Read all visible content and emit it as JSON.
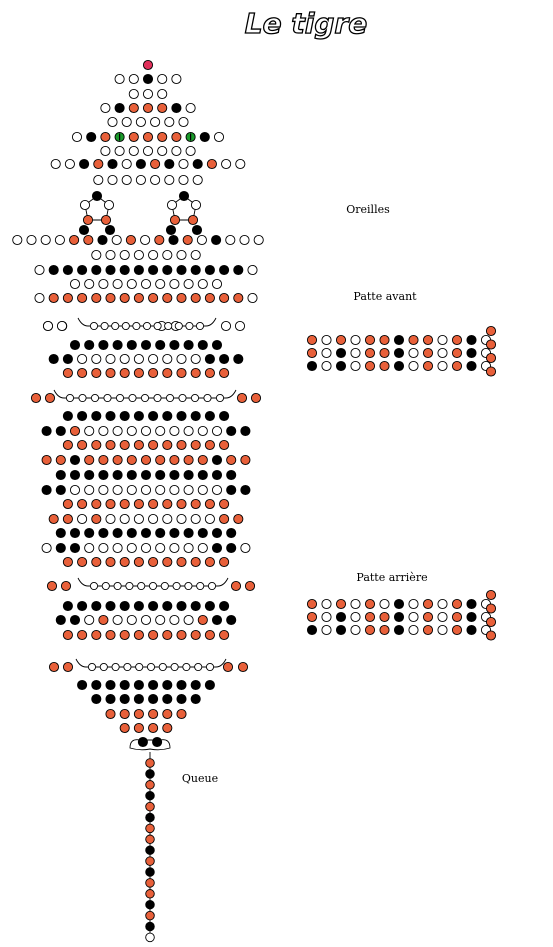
{
  "title": "Le tigre",
  "labels": {
    "ears": "Oreilles",
    "front_leg": "Patte avant",
    "back_leg": "Patte arrière",
    "tail": "Queue"
  },
  "colors": {
    "white": "#ffffff",
    "black": "#000000",
    "orange": "#e8603a",
    "green": "#1a9a2a",
    "red": "#e0305a",
    "outline": "#000000"
  },
  "bead_legend": {
    "W": "white",
    "B": "black",
    "O": "orange",
    "G": "green",
    "R": "red"
  },
  "rows": {
    "r_nose": "R",
    "r_head1": "WWBWW",
    "r_head2": "WWW",
    "r_head3": "WBOOOBW",
    "r_head4": "WWWWWW",
    "r_eyes": "WBOGOOOOGBW",
    "r_head5": "WWWWWWW",
    "r_cheeks": "WWBOBWBOBWBOWW",
    "r_neck": "WWWWWWWW",
    "r_shoulders": "WWWWOOBWOWOBOWBWWW",
    "r_back1": "WWWWWWWW",
    "r_back2": "WBBBBBBBBBBBBBBW",
    "r_back3": "WWWWWWWWWWW",
    "r_back4": "WOOOOOOOOOOOOOOW",
    "r_front_legs": "WW......WW",
    "r_body1": "BBBBBBBBBBB",
    "r_body2": "BBWWWWWWWWWBBB",
    "r_body3": "OOOOOOOOOOOO",
    "r_hips_front": "OO........OO",
    "r_body4": "BBBBBBBBBBBB",
    "r_body5": "BBOWWWWWWWWWWBB",
    "r_body6": "OOOOOOOOOOOO",
    "r_body7": "OOBOOOOOOOOOBOO",
    "r_body8": "BBBBBBBBBBBBB",
    "r_body9": "BBWWWWWWWWWWWBB",
    "r_body10": "OOOOOOOOOOOO",
    "r_body11": "OOWOWWWWWWWWOO",
    "r_body12": "BBBBBBBBBBBBB",
    "r_body13": "WBBWWWWWWWWWBBW",
    "r_body14": "OOOOOOOOOOOO",
    "r_back_legs": "OO........OO",
    "r_body15": "BBBBBBBBBBBB",
    "r_body16": "BBWOWWWWWWOBB",
    "r_body17": "OOOOOOOOOOOO",
    "r_rear": "OO........OO",
    "r_pelvis1": "BBBBBBBBBB",
    "r_pelvis2": "BBBBBBBB",
    "r_pelvis3": "OOOOOO",
    "r_pelvis4": "OOOO",
    "r_tail_base": "BB",
    "r_tail": "OBOBOBOOBOBOOBOBW",
    "front_leg_row1": "OWOWOOBOOWOBW",
    "front_leg_row2": "OWBWOOBWOWOBW",
    "front_leg_row3": "BWBWOOBWOWOBW",
    "front_leg_tip": "OOOO",
    "back_leg_row1": "OWOWOWBWOWOBW",
    "back_leg_row2": "OWBWOOBWOWOBW",
    "back_leg_row3": "BWBWOOBWOWOBW",
    "back_leg_tip": "OOOO"
  }
}
